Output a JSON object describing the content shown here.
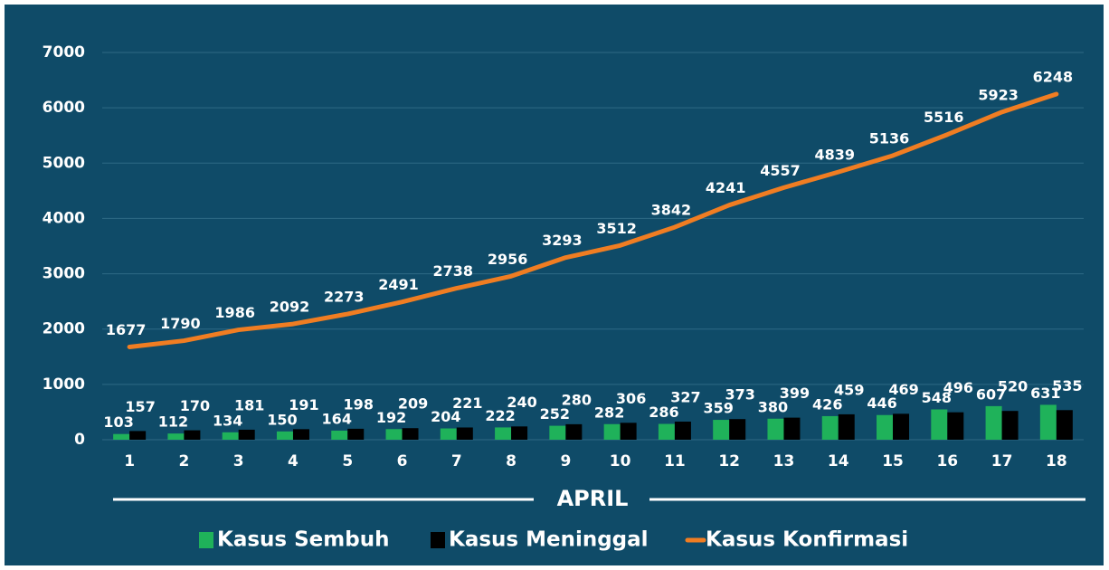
{
  "chart_data": {
    "type": "bar",
    "x_label": "APRIL",
    "categories": [
      "1",
      "2",
      "3",
      "4",
      "5",
      "6",
      "7",
      "8",
      "9",
      "10",
      "11",
      "12",
      "13",
      "14",
      "15",
      "16",
      "17",
      "18"
    ],
    "series": [
      {
        "name": "Kasus Sembuh",
        "type": "bar",
        "color": "#1fb25a",
        "values": [
          103,
          112,
          134,
          150,
          164,
          192,
          204,
          222,
          252,
          282,
          286,
          359,
          380,
          426,
          446,
          548,
          607,
          631
        ]
      },
      {
        "name": "Kasus Meninggal",
        "type": "bar",
        "color": "#000000",
        "values": [
          157,
          170,
          181,
          191,
          198,
          209,
          221,
          240,
          280,
          306,
          327,
          373,
          399,
          459,
          469,
          496,
          520,
          535
        ]
      },
      {
        "name": "Kasus Konfirmasi",
        "type": "line",
        "color": "#f07d22",
        "values": [
          1677,
          1790,
          1986,
          2092,
          2273,
          2491,
          2738,
          2956,
          3293,
          3512,
          3842,
          4241,
          4557,
          4839,
          5136,
          5516,
          5923,
          6248
        ]
      }
    ],
    "ylim": [
      0,
      7000
    ],
    "yticks": [
      0,
      1000,
      2000,
      3000,
      4000,
      5000,
      6000,
      7000
    ],
    "grid": true,
    "legend": "bottom"
  }
}
